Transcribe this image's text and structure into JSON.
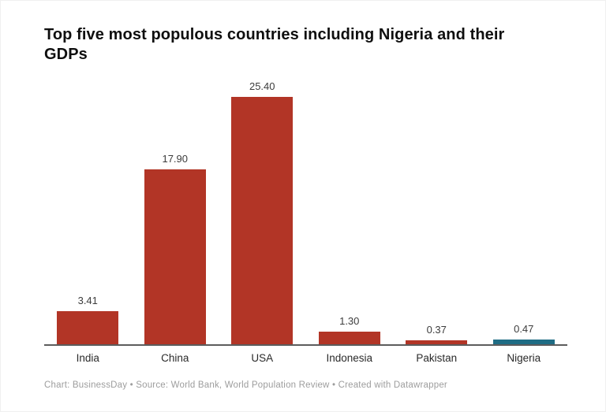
{
  "header": {
    "title": "Top five most populous countries including Nigeria and their GDPs"
  },
  "chart_data": {
    "type": "bar",
    "title": "Top five most populous countries including Nigeria and their GDPs",
    "categories": [
      "India",
      "China",
      "USA",
      "Indonesia",
      "Pakistan",
      "Nigeria"
    ],
    "values": [
      3.41,
      17.9,
      25.4,
      1.3,
      0.37,
      0.47
    ],
    "value_labels": [
      "3.41",
      "17.90",
      "25.40",
      "1.30",
      "0.37",
      "0.47"
    ],
    "bar_colors": [
      "#b23526",
      "#b23526",
      "#b23526",
      "#b23526",
      "#b23526",
      "#1f6c84"
    ],
    "colors": {
      "default_bar": "#b23526",
      "highlight_bar": "#1f6c84",
      "axis_line": "#5c5c5c",
      "value_label": "#3c3c3c",
      "category_label": "#2a2a2a",
      "title": "#0f0f0f",
      "footer": "#9d9d9d"
    },
    "xlabel": "",
    "ylabel": "",
    "ylim": [
      0,
      25.4
    ],
    "grid": false,
    "legend": "none",
    "value_labels_position": "above-bar",
    "baseline_axis": "x"
  },
  "footer": {
    "credit": "Chart: BusinessDay  • Source: World Bank, World Population Review  • Created with Datawrapper"
  }
}
